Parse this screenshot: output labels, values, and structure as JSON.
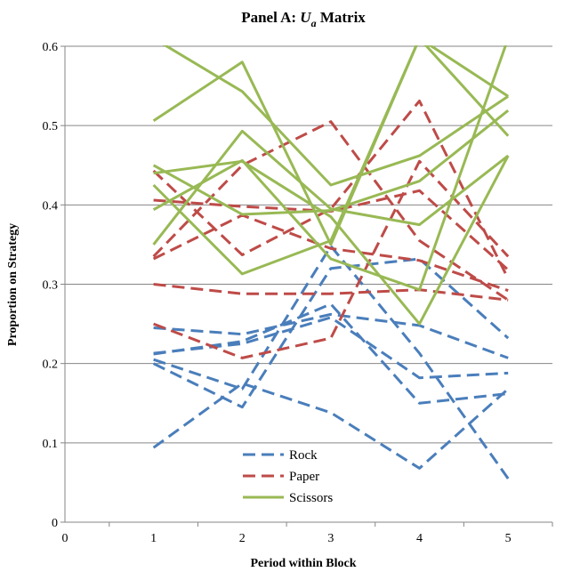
{
  "chart_data": {
    "type": "line",
    "title_main": "Panel A: ",
    "title_var": "U",
    "title_sub": "a",
    "title_rest": " Matrix",
    "xlabel": "Period within Block",
    "ylabel": "Proportion on Strategy",
    "xlim": [
      0,
      5.5
    ],
    "ylim": [
      0,
      0.6
    ],
    "x_ticks": [
      0,
      1,
      2,
      3,
      4,
      5
    ],
    "y_ticks": [
      0,
      0.1,
      0.2,
      0.3,
      0.4,
      0.5,
      0.6
    ],
    "y_tick_labels": [
      "0",
      "0.1",
      "0.2",
      "0.3",
      "0.4",
      "0.5",
      "0.6"
    ],
    "grid": "horizontal",
    "legend_position": "bottom-center",
    "x": [
      1,
      2,
      3,
      4,
      5
    ],
    "legend": [
      {
        "label": "Rock",
        "color": "#4a7ebb",
        "dash": "dashed"
      },
      {
        "label": "Paper",
        "color": "#be4b48",
        "dash": "dashed"
      },
      {
        "label": "Scissors",
        "color": "#98b954",
        "dash": "solid"
      }
    ],
    "series": [
      {
        "group": "Rock",
        "values": [
          0.245,
          0.237,
          0.262,
          0.248,
          0.207
        ]
      },
      {
        "group": "Rock",
        "values": [
          0.213,
          0.225,
          0.258,
          0.182,
          0.188
        ]
      },
      {
        "group": "Rock",
        "values": [
          0.205,
          0.168,
          0.348,
          0.213,
          0.055
        ]
      },
      {
        "group": "Rock",
        "values": [
          0.2,
          0.145,
          0.32,
          0.332,
          0.232
        ]
      },
      {
        "group": "Rock",
        "values": [
          0.094,
          0.175,
          0.138,
          0.068,
          0.168
        ]
      },
      {
        "group": "Rock",
        "values": [
          0.212,
          0.228,
          0.275,
          0.15,
          0.162
        ]
      },
      {
        "group": "Paper",
        "values": [
          0.443,
          0.337,
          0.395,
          0.531,
          0.307
        ]
      },
      {
        "group": "Paper",
        "values": [
          0.406,
          0.398,
          0.392,
          0.418,
          0.318
        ]
      },
      {
        "group": "Paper",
        "values": [
          0.335,
          0.45,
          0.505,
          0.355,
          0.28
        ]
      },
      {
        "group": "Paper",
        "values": [
          0.3,
          0.288,
          0.288,
          0.293,
          0.28
        ]
      },
      {
        "group": "Paper",
        "values": [
          0.25,
          0.207,
          0.232,
          0.455,
          0.335
        ]
      },
      {
        "group": "Paper",
        "values": [
          0.332,
          0.387,
          0.345,
          0.33,
          0.292
        ]
      },
      {
        "group": "Scissors",
        "values": [
          0.506,
          0.58,
          0.35,
          0.61,
          0.537
        ]
      },
      {
        "group": "Scissors",
        "values": [
          0.61,
          0.543,
          0.425,
          0.462,
          0.537
        ]
      },
      {
        "group": "Scissors",
        "values": [
          0.45,
          0.388,
          0.393,
          0.43,
          0.519
        ]
      },
      {
        "group": "Scissors",
        "values": [
          0.425,
          0.313,
          0.355,
          0.61,
          0.487
        ]
      },
      {
        "group": "Scissors",
        "values": [
          0.394,
          0.456,
          0.332,
          0.293,
          0.61
        ]
      },
      {
        "group": "Scissors",
        "values": [
          0.35,
          0.493,
          0.395,
          0.375,
          0.462
        ]
      },
      {
        "group": "Scissors",
        "values": [
          0.44,
          0.455,
          0.385,
          0.25,
          0.462
        ]
      }
    ]
  }
}
